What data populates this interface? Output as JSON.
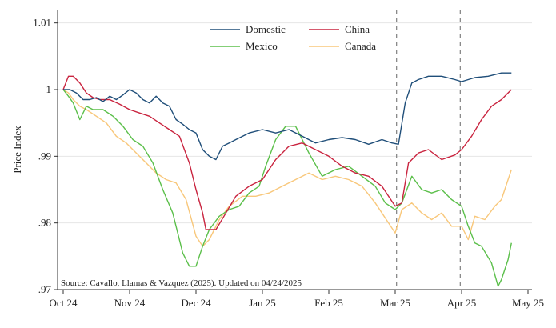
{
  "chart_data": {
    "type": "line",
    "ylabel": "Price Index",
    "xlabel": "",
    "ylim": [
      0.97,
      1.012
    ],
    "xlim": [
      0,
      7
    ],
    "y_ticks": [
      {
        "value": 1.01,
        "label": "1.01"
      },
      {
        "value": 1.0,
        "label": "1"
      },
      {
        "value": 0.99,
        "label": ".99"
      },
      {
        "value": 0.98,
        "label": ".98"
      },
      {
        "value": 0.97,
        "label": ".97"
      }
    ],
    "x_ticks": [
      {
        "value": 0,
        "label": "Oct 24"
      },
      {
        "value": 1,
        "label": "Nov 24"
      },
      {
        "value": 2,
        "label": "Dec 24"
      },
      {
        "value": 3,
        "label": "Jan 25"
      },
      {
        "value": 4,
        "label": "Feb 25"
      },
      {
        "value": 5,
        "label": "Mar 25"
      },
      {
        "value": 6,
        "label": "Apr 25"
      },
      {
        "value": 7,
        "label": "May 25"
      }
    ],
    "vlines": [
      5.02,
      5.98
    ],
    "grid": "horizontal",
    "legend_position": "top-center",
    "source_note": "Source: Cavallo, Llamas & Vazquez (2025). Updated on 04/24/2025",
    "series": [
      {
        "name": "Domestic",
        "color": "#1f4e79",
        "x": [
          0,
          0.1,
          0.2,
          0.3,
          0.4,
          0.5,
          0.6,
          0.7,
          0.8,
          0.9,
          1.0,
          1.1,
          1.2,
          1.3,
          1.4,
          1.5,
          1.6,
          1.7,
          1.8,
          1.9,
          2.0,
          2.1,
          2.2,
          2.3,
          2.4,
          2.5,
          2.6,
          2.8,
          3.0,
          3.2,
          3.4,
          3.6,
          3.8,
          4.0,
          4.2,
          4.4,
          4.6,
          4.8,
          4.95,
          5.05,
          5.15,
          5.25,
          5.35,
          5.5,
          5.7,
          5.9,
          6.0,
          6.2,
          6.4,
          6.6,
          6.75
        ],
        "y": [
          1.0,
          1.0,
          0.9995,
          0.9985,
          0.9985,
          0.9988,
          0.9982,
          0.999,
          0.9985,
          0.9992,
          1.0,
          0.9995,
          0.9985,
          0.998,
          0.999,
          0.998,
          0.9975,
          0.9955,
          0.9948,
          0.994,
          0.9935,
          0.991,
          0.99,
          0.9895,
          0.9915,
          0.992,
          0.9925,
          0.9935,
          0.994,
          0.9935,
          0.994,
          0.993,
          0.992,
          0.9925,
          0.9928,
          0.9925,
          0.9918,
          0.9925,
          0.992,
          0.9918,
          0.998,
          1.001,
          1.0015,
          1.002,
          1.002,
          1.0015,
          1.0012,
          1.0018,
          1.002,
          1.0025,
          1.0025
        ]
      },
      {
        "name": "China",
        "color": "#c9243f",
        "x": [
          0,
          0.08,
          0.15,
          0.25,
          0.35,
          0.45,
          0.55,
          0.7,
          0.85,
          1.0,
          1.15,
          1.3,
          1.45,
          1.6,
          1.75,
          1.9,
          2.0,
          2.1,
          2.15,
          2.3,
          2.45,
          2.6,
          2.8,
          3.0,
          3.2,
          3.4,
          3.6,
          3.8,
          4.0,
          4.2,
          4.4,
          4.6,
          4.8,
          5.0,
          5.1,
          5.2,
          5.35,
          5.5,
          5.7,
          5.9,
          6.0,
          6.15,
          6.3,
          6.45,
          6.6,
          6.75
        ],
        "y": [
          1.0,
          1.002,
          1.002,
          1.001,
          0.9995,
          0.9988,
          0.9985,
          0.9985,
          0.9978,
          0.997,
          0.9965,
          0.996,
          0.995,
          0.994,
          0.993,
          0.989,
          0.985,
          0.9815,
          0.979,
          0.979,
          0.9815,
          0.984,
          0.9855,
          0.9865,
          0.9895,
          0.9915,
          0.992,
          0.991,
          0.99,
          0.9885,
          0.9875,
          0.987,
          0.9855,
          0.9825,
          0.983,
          0.989,
          0.9905,
          0.991,
          0.9895,
          0.9902,
          0.991,
          0.993,
          0.9955,
          0.9975,
          0.9985,
          1.0
        ]
      },
      {
        "name": "Mexico",
        "color": "#5bbf4a",
        "x": [
          0,
          0.08,
          0.15,
          0.25,
          0.35,
          0.45,
          0.6,
          0.75,
          0.9,
          1.05,
          1.2,
          1.35,
          1.5,
          1.65,
          1.8,
          1.9,
          2.0,
          2.1,
          2.2,
          2.35,
          2.5,
          2.65,
          2.8,
          2.95,
          3.05,
          3.2,
          3.35,
          3.5,
          3.7,
          3.9,
          4.1,
          4.3,
          4.5,
          4.7,
          4.85,
          5.0,
          5.1,
          5.25,
          5.4,
          5.55,
          5.7,
          5.85,
          6.0,
          6.1,
          6.2,
          6.3,
          6.45,
          6.55,
          6.6,
          6.7,
          6.75
        ],
        "y": [
          1.0,
          0.999,
          0.998,
          0.9955,
          0.9975,
          0.997,
          0.997,
          0.996,
          0.9945,
          0.9925,
          0.9915,
          0.989,
          0.985,
          0.9815,
          0.9755,
          0.9735,
          0.9735,
          0.9765,
          0.979,
          0.981,
          0.982,
          0.9825,
          0.9845,
          0.9855,
          0.9885,
          0.9925,
          0.9945,
          0.9945,
          0.9905,
          0.987,
          0.988,
          0.9885,
          0.987,
          0.9855,
          0.983,
          0.982,
          0.983,
          0.987,
          0.985,
          0.9845,
          0.985,
          0.9835,
          0.9825,
          0.9795,
          0.977,
          0.9765,
          0.974,
          0.9705,
          0.9715,
          0.9745,
          0.977
        ]
      },
      {
        "name": "Canada",
        "color": "#f8c77a",
        "x": [
          0,
          0.08,
          0.15,
          0.25,
          0.35,
          0.5,
          0.65,
          0.8,
          0.95,
          1.1,
          1.25,
          1.4,
          1.55,
          1.7,
          1.85,
          2.0,
          2.1,
          2.2,
          2.35,
          2.5,
          2.7,
          2.9,
          3.1,
          3.3,
          3.5,
          3.7,
          3.9,
          4.1,
          4.3,
          4.5,
          4.7,
          4.9,
          5.0,
          5.1,
          5.25,
          5.4,
          5.55,
          5.7,
          5.85,
          6.0,
          6.1,
          6.2,
          6.35,
          6.5,
          6.6,
          6.7,
          6.75
        ],
        "y": [
          1.0,
          0.9995,
          0.9985,
          0.9975,
          0.997,
          0.996,
          0.995,
          0.993,
          0.992,
          0.9905,
          0.989,
          0.9875,
          0.9865,
          0.986,
          0.9835,
          0.978,
          0.9765,
          0.9775,
          0.9805,
          0.9825,
          0.984,
          0.984,
          0.9845,
          0.9855,
          0.9865,
          0.9875,
          0.9865,
          0.987,
          0.9865,
          0.9855,
          0.983,
          0.98,
          0.9785,
          0.982,
          0.983,
          0.9815,
          0.9805,
          0.9815,
          0.9795,
          0.9795,
          0.9775,
          0.981,
          0.9805,
          0.9825,
          0.9835,
          0.9865,
          0.988
        ]
      }
    ]
  }
}
